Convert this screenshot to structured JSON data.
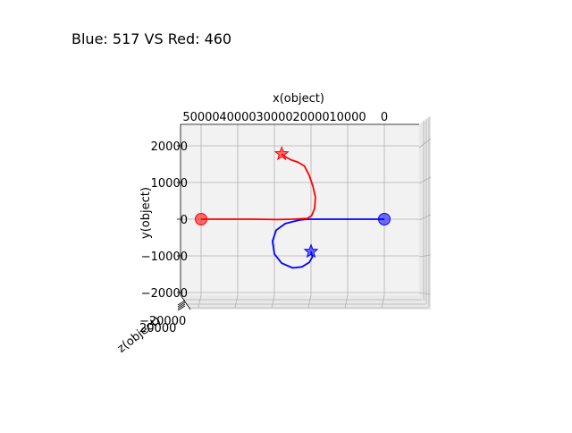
{
  "chart_data": {
    "type": "line",
    "projection": "3d",
    "title": "Blue: 517 VS Red: 460",
    "xlabel": "x(object)",
    "ylabel": "y(object)",
    "zlabel": "z(object)",
    "x_axis_reversed": true,
    "xlim": [
      -10000,
      55000
    ],
    "ylim": [
      -22000,
      25000
    ],
    "xticks": [
      50000,
      40000,
      30000,
      20000,
      10000,
      0
    ],
    "xtick_labels": [
      "50000",
      "40000",
      "30000",
      "20000",
      "10000",
      "0"
    ],
    "yticks": [
      20000,
      10000,
      0,
      -10000,
      -20000
    ],
    "ytick_labels": [
      "20000",
      "10000",
      "0",
      "−10000",
      "−20000"
    ],
    "ztick_labels": [
      "−20000",
      "20000"
    ],
    "grid": true,
    "series": [
      {
        "color": "#0000ff",
        "points": [
          [
            0,
            0
          ],
          [
            3000,
            0
          ],
          [
            8000,
            0
          ],
          [
            14000,
            0
          ],
          [
            18000,
            0
          ],
          [
            21000,
            0
          ],
          [
            23000,
            -200
          ],
          [
            27000,
            -1200
          ],
          [
            29500,
            -3000
          ],
          [
            30500,
            -6000
          ],
          [
            30000,
            -9500
          ],
          [
            28000,
            -12000
          ],
          [
            25000,
            -13300
          ],
          [
            22500,
            -13000
          ],
          [
            20500,
            -11800
          ],
          [
            19600,
            -10300
          ],
          [
            20000,
            -8800
          ]
        ],
        "start_marker": "circle",
        "end_marker": "star"
      },
      {
        "color": "#ff0000",
        "points": [
          [
            50000,
            0
          ],
          [
            44000,
            0
          ],
          [
            36000,
            0
          ],
          [
            29000,
            -100
          ],
          [
            25000,
            0
          ],
          [
            21000,
            200
          ],
          [
            19800,
            1000
          ],
          [
            19000,
            3000
          ],
          [
            18800,
            6000
          ],
          [
            19500,
            9000
          ],
          [
            20500,
            12000
          ],
          [
            21800,
            14500
          ],
          [
            23500,
            15500
          ],
          [
            25500,
            16200
          ],
          [
            27500,
            17300
          ],
          [
            28000,
            17800
          ]
        ],
        "start_marker": "circle",
        "end_marker": "star"
      }
    ],
    "colors": {
      "blue": "#0000ff",
      "red": "#ff0000"
    }
  }
}
